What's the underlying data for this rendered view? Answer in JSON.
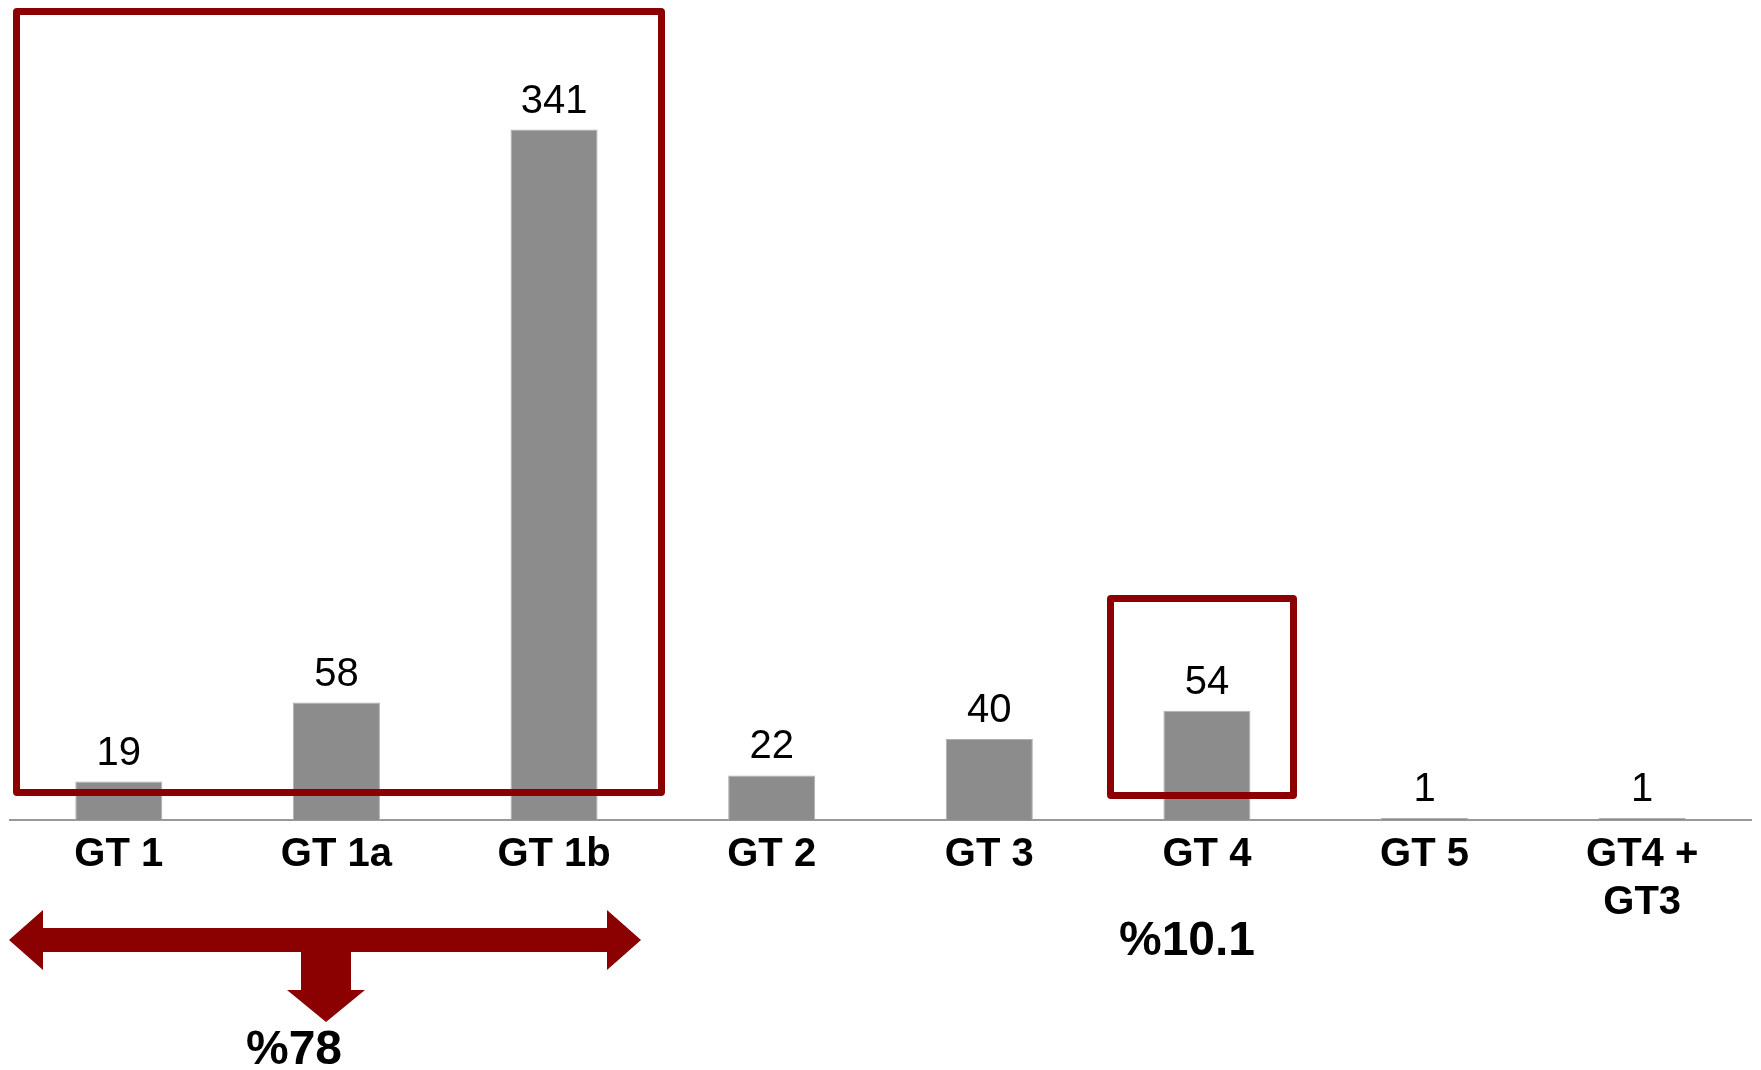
{
  "chart_data": {
    "type": "bar",
    "categories": [
      "GT 1",
      "GT 1a",
      "GT 1b",
      "GT 2",
      "GT 3",
      "GT 4",
      "GT 5",
      "GT4 + GT3"
    ],
    "values": [
      19,
      58,
      341,
      22,
      40,
      54,
      1,
      1
    ],
    "color": "#8c8c8c",
    "data_labels": true,
    "grid": false,
    "legend": false,
    "tick_labels": "x",
    "annotations": [
      "%78",
      "%10.1"
    ]
  }
}
